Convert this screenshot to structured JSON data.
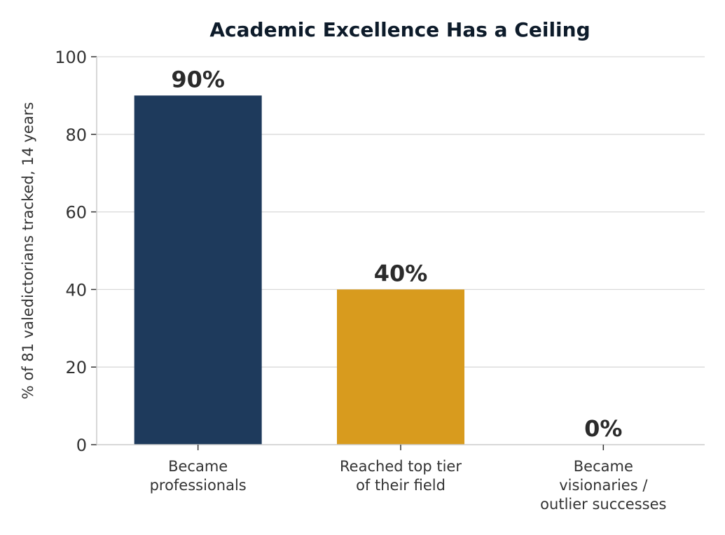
{
  "chart_data": {
    "type": "bar",
    "title": "Academic Excellence Has a Ceiling",
    "xlabel": "",
    "ylabel": "% of 81 valedictorians tracked, 14 years",
    "ylim": [
      0,
      100
    ],
    "yticks": [
      0,
      20,
      40,
      60,
      80,
      100
    ],
    "grid": true,
    "categories": [
      [
        "Became",
        "professionals"
      ],
      [
        "Reached top tier",
        "of their field"
      ],
      [
        "Became",
        "visionaries /",
        "outlier successes"
      ]
    ],
    "values": [
      90,
      40,
      0
    ],
    "data_labels": [
      "90%",
      "40%",
      "0%"
    ],
    "colors": [
      "#1e3a5c",
      "#d89b1e",
      "#9e9e9e"
    ]
  }
}
